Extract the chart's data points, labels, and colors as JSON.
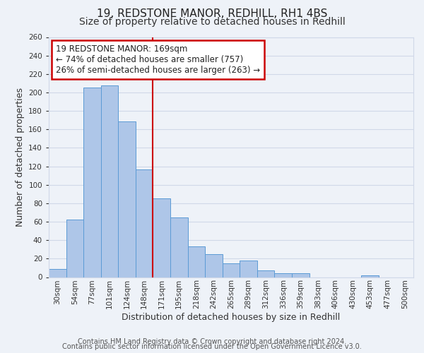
{
  "title": "19, REDSTONE MANOR, REDHILL, RH1 4BS",
  "subtitle": "Size of property relative to detached houses in Redhill",
  "xlabel": "Distribution of detached houses by size in Redhill",
  "ylabel": "Number of detached properties",
  "bin_labels": [
    "30sqm",
    "54sqm",
    "77sqm",
    "101sqm",
    "124sqm",
    "148sqm",
    "171sqm",
    "195sqm",
    "218sqm",
    "242sqm",
    "265sqm",
    "289sqm",
    "312sqm",
    "336sqm",
    "359sqm",
    "383sqm",
    "406sqm",
    "430sqm",
    "453sqm",
    "477sqm",
    "500sqm"
  ],
  "bar_heights": [
    9,
    62,
    205,
    208,
    169,
    117,
    85,
    65,
    33,
    25,
    15,
    18,
    7,
    4,
    4,
    0,
    0,
    0,
    2,
    0,
    0
  ],
  "bar_color": "#aec6e8",
  "bar_edge_color": "#5b9bd5",
  "grid_color": "#d0d8e8",
  "bg_color": "#eef2f8",
  "vline_color": "#cc0000",
  "annotation_box_text": "19 REDSTONE MANOR: 169sqm\n← 74% of detached houses are smaller (757)\n26% of semi-detached houses are larger (263) →",
  "annotation_box_edge_color": "#cc0000",
  "annotation_box_facecolor": "#ffffff",
  "ylim": [
    0,
    260
  ],
  "yticks": [
    0,
    20,
    40,
    60,
    80,
    100,
    120,
    140,
    160,
    180,
    200,
    220,
    240,
    260
  ],
  "footer_line1": "Contains HM Land Registry data © Crown copyright and database right 2024.",
  "footer_line2": "Contains public sector information licensed under the Open Government Licence v3.0.",
  "title_fontsize": 11,
  "subtitle_fontsize": 10,
  "axis_label_fontsize": 9,
  "tick_fontsize": 7.5,
  "annotation_fontsize": 8.5,
  "footer_fontsize": 7
}
